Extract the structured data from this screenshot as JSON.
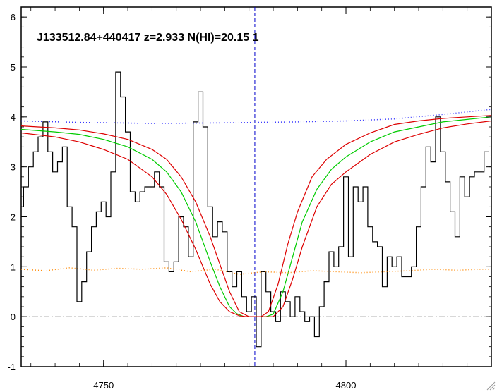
{
  "chart_data": {
    "type": "line",
    "title": "J133512.84+440417 z=2.933 N(HI)=20.15 1",
    "xlabel": "",
    "ylabel": "",
    "xlim": [
      4733,
      4830
    ],
    "ylim": [
      -1,
      6.2
    ],
    "grid": false,
    "legend": "none",
    "x_ticks": [
      4750,
      4800
    ],
    "y_ticks": [
      -1,
      0,
      1,
      2,
      3,
      4,
      5,
      6
    ],
    "line_center": 4781.2,
    "zero_level": 0,
    "series": [
      {
        "style": "histogram",
        "color": "#000000",
        "x": [
          4733,
          4734,
          4735,
          4736,
          4737,
          4738,
          4739,
          4740,
          4741,
          4742,
          4743,
          4744,
          4745,
          4746,
          4747,
          4748,
          4749,
          4750,
          4751,
          4752,
          4753,
          4754,
          4755,
          4756,
          4757,
          4758,
          4759,
          4760,
          4761,
          4762,
          4763,
          4764,
          4765,
          4766,
          4767,
          4768,
          4769,
          4770,
          4771,
          4772,
          4773,
          4774,
          4775,
          4776,
          4777,
          4778,
          4779,
          4780,
          4781,
          4782,
          4783,
          4784,
          4785,
          4786,
          4787,
          4788,
          4789,
          4790,
          4791,
          4792,
          4793,
          4794,
          4795,
          4796,
          4797,
          4798,
          4799,
          4800,
          4801,
          4802,
          4803,
          4804,
          4805,
          4806,
          4807,
          4808,
          4809,
          4810,
          4811,
          4812,
          4813,
          4814,
          4815,
          4816,
          4817,
          4818,
          4819,
          4820,
          4821,
          4822,
          4823,
          4824,
          4825,
          4826,
          4827,
          4828,
          4829
        ],
        "values": [
          2.2,
          2.6,
          3.0,
          3.3,
          3.6,
          3.9,
          3.3,
          2.9,
          3.1,
          3.4,
          2.2,
          1.8,
          0.3,
          0.7,
          1.3,
          1.8,
          2.1,
          2.3,
          2.0,
          2.9,
          4.9,
          4.4,
          3.7,
          2.5,
          2.3,
          2.5,
          2.6,
          2.6,
          2.9,
          2.6,
          1.1,
          0.9,
          1.1,
          2.0,
          1.8,
          1.2,
          3.9,
          4.5,
          3.8,
          2.2,
          1.6,
          1.9,
          1.7,
          0.9,
          0.6,
          0.9,
          0.4,
          0.1,
          0.4,
          -0.6,
          0.9,
          0.5,
          0.1,
          -0.1,
          0.5,
          0.3,
          0.0,
          0.4,
          0.1,
          -0.1,
          0.0,
          -0.4,
          0.2,
          0.7,
          1.3,
          1.0,
          1.4,
          2.8,
          1.2,
          2.6,
          2.3,
          2.6,
          1.8,
          1.5,
          1.4,
          0.6,
          1.2,
          1.0,
          1.2,
          0.8,
          0.8,
          1.0,
          1.8,
          2.6,
          3.4,
          3.1,
          4.0,
          3.3,
          2.7,
          2.1,
          1.6,
          2.8,
          2.4,
          2.8,
          2.9,
          2.9,
          3.3
        ]
      },
      {
        "style": "line",
        "color": "#00cc00",
        "x": [
          4733,
          4740,
          4745,
          4750,
          4755,
          4760,
          4763,
          4766,
          4769,
          4772,
          4774,
          4776,
          4777.5,
          4779,
          4780.5,
          4781.2,
          4782,
          4783.5,
          4785,
          4787,
          4789,
          4791,
          4794,
          4797,
          4800,
          4805,
          4810,
          4815,
          4820,
          4825,
          4830
        ],
        "values": [
          3.75,
          3.7,
          3.65,
          3.55,
          3.4,
          3.15,
          2.9,
          2.5,
          1.9,
          1.1,
          0.6,
          0.2,
          0.06,
          0.0,
          0.0,
          0.0,
          0.0,
          0.0,
          0.05,
          0.5,
          1.2,
          1.9,
          2.55,
          2.95,
          3.2,
          3.5,
          3.7,
          3.8,
          3.9,
          3.95,
          4.0
        ]
      },
      {
        "style": "line",
        "color": "#dd0000",
        "x": [
          4733,
          4740,
          4745,
          4750,
          4755,
          4760,
          4763,
          4766,
          4769,
          4772,
          4774,
          4776,
          4778,
          4780,
          4781.2,
          4782.5,
          4784,
          4786,
          4788,
          4790,
          4793,
          4796,
          4800,
          4805,
          4810,
          4815,
          4820,
          4825,
          4830
        ],
        "values": [
          3.82,
          3.78,
          3.74,
          3.66,
          3.55,
          3.35,
          3.15,
          2.8,
          2.3,
          1.6,
          1.05,
          0.5,
          0.1,
          0.0,
          0.0,
          0.0,
          0.1,
          0.65,
          1.45,
          2.1,
          2.8,
          3.15,
          3.45,
          3.68,
          3.85,
          3.92,
          3.97,
          4.0,
          4.03
        ]
      },
      {
        "style": "line",
        "color": "#dd0000",
        "x": [
          4733,
          4740,
          4745,
          4750,
          4755,
          4760,
          4763,
          4766,
          4769,
          4772,
          4774,
          4776,
          4778,
          4779.5,
          4781.2,
          4783,
          4785,
          4787,
          4789,
          4791,
          4794,
          4797,
          4800,
          4805,
          4810,
          4815,
          4820,
          4825,
          4830
        ],
        "values": [
          3.68,
          3.6,
          3.5,
          3.35,
          3.15,
          2.8,
          2.45,
          1.95,
          1.35,
          0.65,
          0.3,
          0.1,
          0.02,
          0.0,
          0.0,
          0.0,
          0.0,
          0.2,
          0.75,
          1.4,
          2.2,
          2.65,
          2.9,
          3.25,
          3.5,
          3.65,
          3.78,
          3.86,
          3.92
        ]
      },
      {
        "style": "dotted",
        "color": "#3333ff",
        "x": [
          4733,
          4745,
          4760,
          4775,
          4781,
          4790,
          4800,
          4810,
          4820,
          4830
        ],
        "values": [
          3.92,
          3.89,
          3.87,
          3.88,
          3.89,
          3.9,
          3.92,
          3.96,
          4.05,
          4.15
        ]
      },
      {
        "style": "dotted",
        "color": "#ff8800",
        "x": [
          4733,
          4738,
          4743,
          4748,
          4753,
          4758,
          4763,
          4768,
          4773,
          4778,
          4783,
          4788,
          4793,
          4798,
          4803,
          4808,
          4813,
          4818,
          4823,
          4828,
          4830
        ],
        "values": [
          0.95,
          0.92,
          0.98,
          0.93,
          0.97,
          0.95,
          0.98,
          0.9,
          0.95,
          0.85,
          0.9,
          0.88,
          0.92,
          0.9,
          0.88,
          0.9,
          0.92,
          0.95,
          0.93,
          0.95,
          0.95
        ]
      }
    ]
  }
}
